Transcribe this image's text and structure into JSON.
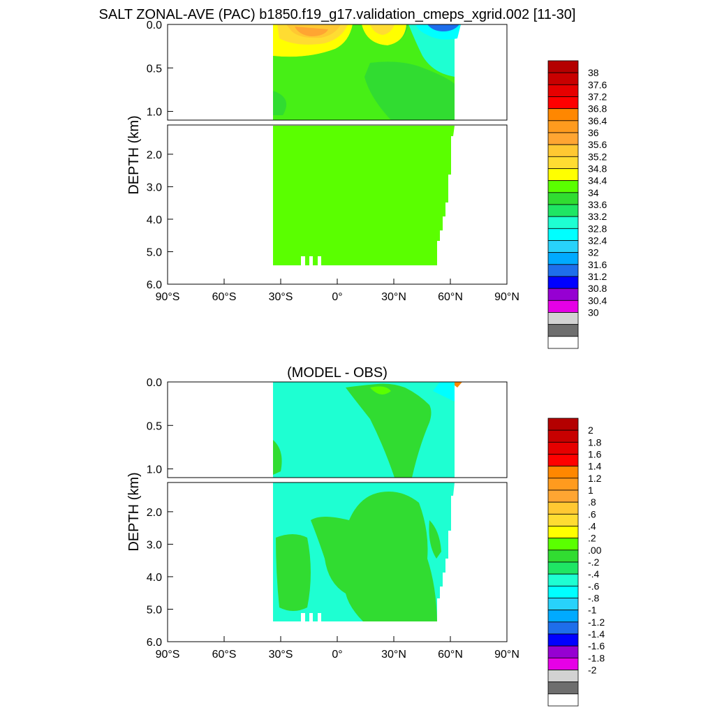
{
  "title": "SALT ZONAL-AVE (PAC) b1850.f19_g17.validation_cmeps_xgrid.002 [11-30]",
  "colors": {
    "salt_levels": [
      "#ffffff",
      "#6e6e6e",
      "#d2d2d2",
      "#e600e6",
      "#9600d2",
      "#0000ff",
      "#1e6eeb",
      "#00aaff",
      "#28d2fa",
      "#00ffff",
      "#1effd2",
      "#1fe664",
      "#31dc31",
      "#5aff00",
      "#ffff00",
      "#ffdc32",
      "#ffc832",
      "#ffa532",
      "#ff9b1e",
      "#ff8700",
      "#ff0000",
      "#e60000",
      "#c80000",
      "#b40000"
    ],
    "diff_levels": [
      "#ffffff",
      "#6e6e6e",
      "#d2d2d2",
      "#e600e6",
      "#9600d2",
      "#0000ff",
      "#1e6eeb",
      "#00aaff",
      "#28d2fa",
      "#00ffff",
      "#1effd2",
      "#1fe664",
      "#31dc31",
      "#5aff00",
      "#ffff00",
      "#ffdc32",
      "#ffc832",
      "#ffa532",
      "#ff9b1e",
      "#ff8700",
      "#ff0000",
      "#e60000",
      "#c80000",
      "#b40000"
    ]
  },
  "chart_data": [
    {
      "type": "contour",
      "subtitle": "",
      "ylabel": "DEPTH (km)",
      "xlim": [
        -90,
        90
      ],
      "ylim": [
        0,
        6
      ],
      "y_axis": "inverted, split at 1.1 km",
      "x_ticks": [
        "90°S",
        "60°S",
        "30°S",
        "0°",
        "30°N",
        "60°N",
        "90°N"
      ],
      "y_ticks_upper": [
        "0.0",
        "0.5",
        "1.0"
      ],
      "y_ticks_lower": [
        "2.0",
        "3.0",
        "4.0",
        "5.0",
        "6.0"
      ],
      "data_extent": {
        "lat_min": -34,
        "lat_max": 62,
        "depth_max": 5.4
      },
      "colorbar_labels": [
        "38",
        "37.6",
        "37.2",
        "36.8",
        "36.4",
        "36",
        "35.6",
        "35.2",
        "34.8",
        "34.4",
        "34",
        "33.6",
        "33.2",
        "32.8",
        "32.4",
        "32",
        "31.6",
        "31.2",
        "30.8",
        "30.4",
        "30"
      ],
      "dominant_range": "34.4–34.8",
      "features": [
        "high salinity 35.2–36 near surface 30°S–15°S",
        "high salinity 34.8–35.2 near surface around 20°N",
        "low salinity 32.4–33.6 near surface 40°N–62°N"
      ]
    },
    {
      "type": "contour",
      "subtitle": "(MODEL - OBS)",
      "ylabel": "DEPTH (km)",
      "xlim": [
        -90,
        90
      ],
      "ylim": [
        0,
        6
      ],
      "y_axis": "inverted, split at 1.1 km",
      "x_ticks": [
        "90°S",
        "60°S",
        "30°S",
        "0°",
        "30°N",
        "60°N",
        "90°N"
      ],
      "y_ticks_upper": [
        "0.0",
        "0.5",
        "1.0"
      ],
      "y_ticks_lower": [
        "2.0",
        "3.0",
        "4.0",
        "5.0",
        "6.0"
      ],
      "data_extent": {
        "lat_min": -34,
        "lat_max": 62,
        "depth_max": 5.4
      },
      "colorbar_labels": [
        "2",
        "1.8",
        "1.6",
        "1.4",
        "1.2",
        "1",
        ".8",
        ".6",
        ".4",
        ".2",
        ".00",
        "-.2",
        "-.4",
        "-.6",
        "-.8",
        "-1",
        "-1.2",
        "-1.4",
        "-1.6",
        "-1.8",
        "-2"
      ],
      "dominant_range": "-0.2–0.2",
      "features": [
        "positive 0–0.2 band rising from ~30°N at 1.1 km to the surface near 10°N",
        "mostly 0–0.2 in deep water with -0.2–0 near the southern and northern edges"
      ]
    }
  ]
}
